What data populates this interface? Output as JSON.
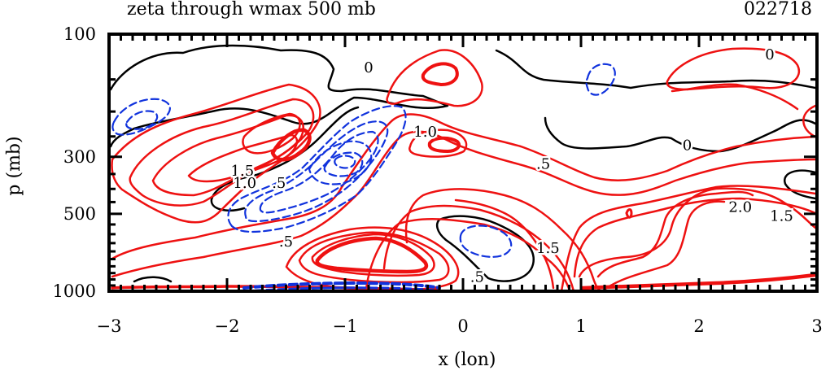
{
  "chart_data": {
    "type": "contour",
    "title": "zeta through wmax 500 mb",
    "date_label": "022718",
    "xlabel": "x (lon)",
    "ylabel": "p (mb)",
    "x_ticks": [
      "−3",
      "−2",
      "−1",
      "0",
      "1",
      "2",
      "3"
    ],
    "x_tick_values": [
      -3,
      -2,
      -1,
      0,
      1,
      2,
      3
    ],
    "y_ticks": [
      "100",
      "300",
      "500",
      "1000"
    ],
    "y_tick_values": [
      100,
      300,
      500,
      1000
    ],
    "xlim": [
      -3,
      3
    ],
    "ylim": [
      1000,
      100
    ],
    "y_scale": "log",
    "colors": {
      "positive": "#ee1111",
      "zero": "#000000",
      "negative": "#1133dd",
      "frame": "#000000"
    },
    "contour_labels": [
      {
        "text": "0",
        "x": -0.8,
        "p": 135
      },
      {
        "text": "0",
        "x": 2.6,
        "p": 120
      },
      {
        "text": "0",
        "x": 1.9,
        "p": 270
      },
      {
        "text": "1.0",
        "x": -0.32,
        "p": 240
      },
      {
        "text": ".5",
        "x": 0.68,
        "p": 320
      },
      {
        "text": "1.5",
        "x": -1.87,
        "p": 340
      },
      {
        "text": "1.0",
        "x": -1.85,
        "p": 380
      },
      {
        "text": ".5",
        "x": -1.56,
        "p": 380
      },
      {
        "text": ".5",
        "x": -1.5,
        "p": 640
      },
      {
        "text": "1.5",
        "x": 0.72,
        "p": 680
      },
      {
        "text": "2.0",
        "x": 2.35,
        "p": 470
      },
      {
        "text": "1.5",
        "x": 2.7,
        "p": 510
      },
      {
        "text": ".5",
        "x": 0.12,
        "p": 880
      }
    ]
  }
}
